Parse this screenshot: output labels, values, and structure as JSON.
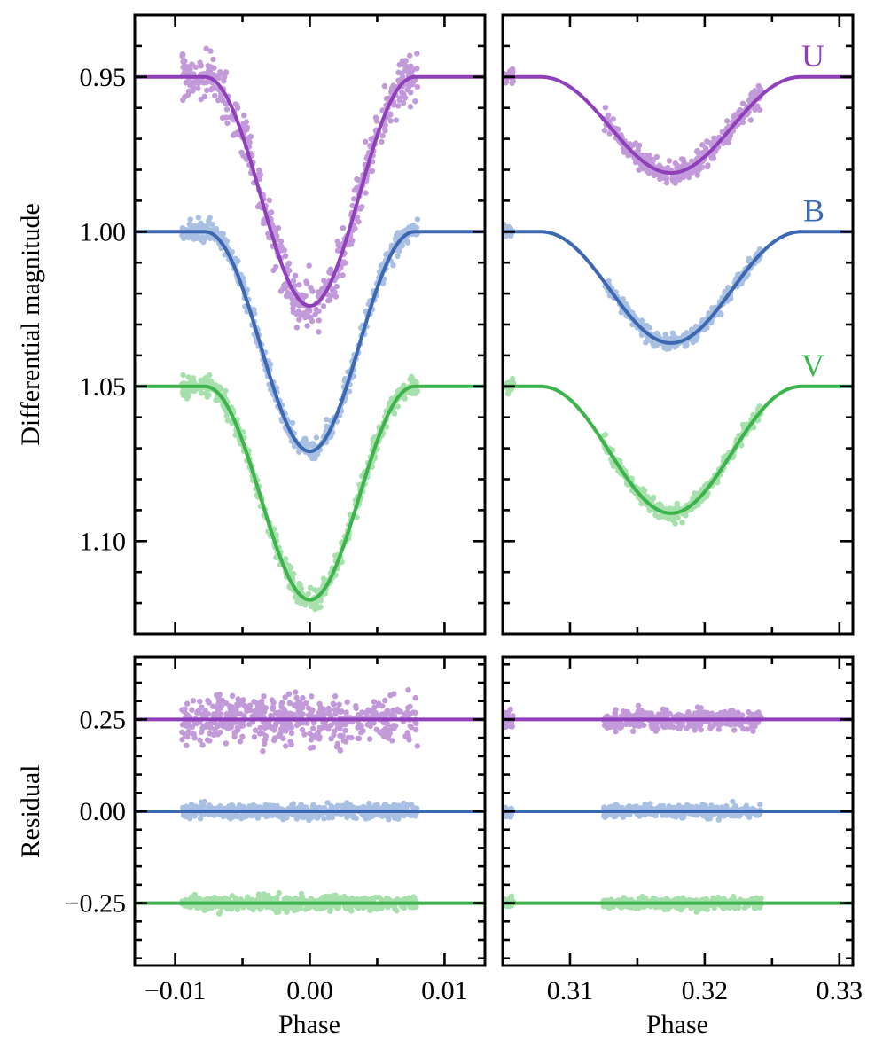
{
  "chart_data": [
    {
      "id": "primary",
      "type": "line",
      "title": "",
      "xlabel": "",
      "ylabel": "Differential magnitude",
      "xlim": [
        -0.013,
        0.013
      ],
      "ylim": [
        1.13,
        0.93
      ],
      "y_inverted": true,
      "xticks": [
        -0.01,
        0.0,
        0.01
      ],
      "xticks_minor": [
        -0.005,
        0.005
      ],
      "yticks": [
        0.95,
        1.0,
        1.05,
        1.1
      ],
      "ytick_labels": [
        "0.95",
        "1.00",
        "1.05",
        "1.10"
      ],
      "eclipse": {
        "center": 0.0,
        "half_width": 0.0078,
        "obs_range": [
          -0.0095,
          0.008
        ]
      },
      "series": [
        {
          "name": "U",
          "baseline": 0.95,
          "depth": 0.074,
          "scatter": 0.006,
          "line_color": "#8f3fba",
          "point_color": "#c29ad9"
        },
        {
          "name": "B",
          "baseline": 1.0,
          "depth": 0.071,
          "scatter": 0.0025,
          "line_color": "#3b68b1",
          "point_color": "#aac0e3"
        },
        {
          "name": "V",
          "baseline": 1.05,
          "depth": 0.069,
          "scatter": 0.0025,
          "line_color": "#3cb44b",
          "point_color": "#a7e0ac"
        }
      ]
    },
    {
      "id": "secondary",
      "type": "line",
      "title": "",
      "xlabel": "",
      "ylabel": "",
      "xlim": [
        0.305,
        0.331
      ],
      "ylim": [
        1.13,
        0.93
      ],
      "y_inverted": true,
      "xticks": [
        0.31,
        0.32,
        0.33
      ],
      "xticks_minor": [
        0.315,
        0.325
      ],
      "yticks": [
        0.95,
        1.0,
        1.05,
        1.1
      ],
      "eclipse": {
        "center": 0.3175,
        "half_width": 0.0097,
        "obs_ranges": [
          [
            0.305,
            0.3058
          ],
          [
            0.3125,
            0.3242
          ]
        ]
      },
      "band_labels": [
        "U",
        "B",
        "V"
      ],
      "series": [
        {
          "name": "U",
          "baseline": 0.95,
          "depth": 0.031,
          "scatter": 0.0025,
          "line_color": "#8f3fba",
          "point_color": "#c29ad9"
        },
        {
          "name": "B",
          "baseline": 1.0,
          "depth": 0.036,
          "scatter": 0.0017,
          "line_color": "#3b68b1",
          "point_color": "#aac0e3"
        },
        {
          "name": "V",
          "baseline": 1.05,
          "depth": 0.041,
          "scatter": 0.0017,
          "line_color": "#3cb44b",
          "point_color": "#a7e0ac"
        }
      ]
    },
    {
      "id": "residual-primary",
      "type": "scatter",
      "xlabel": "Phase",
      "ylabel": "Residual",
      "xlim": [
        -0.013,
        0.013
      ],
      "ylim": [
        -0.42,
        0.42
      ],
      "xticks": [
        -0.01,
        0.0,
        0.01
      ],
      "xtick_labels": [
        "−0.01",
        "0.00",
        "0.01"
      ],
      "xticks_minor": [
        -0.005,
        0.005
      ],
      "yticks": [
        -0.25,
        0.0,
        0.25
      ],
      "ytick_labels": [
        "−0.25",
        "0.00",
        "0.25"
      ],
      "obs_range": [
        -0.0095,
        0.008
      ],
      "series": [
        {
          "name": "U",
          "offset": 0.25,
          "scatter": 0.045,
          "line_color": "#8f3fba",
          "point_color": "#c29ad9"
        },
        {
          "name": "B",
          "offset": 0.0,
          "scatter": 0.013,
          "line_color": "#3b68b1",
          "point_color": "#aac0e3"
        },
        {
          "name": "V",
          "offset": -0.25,
          "scatter": 0.013,
          "line_color": "#3cb44b",
          "point_color": "#a7e0ac"
        }
      ]
    },
    {
      "id": "residual-secondary",
      "type": "scatter",
      "xlabel": "Phase",
      "ylabel": "",
      "xlim": [
        0.305,
        0.331
      ],
      "ylim": [
        -0.42,
        0.42
      ],
      "xticks": [
        0.31,
        0.32,
        0.33
      ],
      "xtick_labels": [
        "0.31",
        "0.32",
        "0.33"
      ],
      "xticks_minor": [
        0.315,
        0.325
      ],
      "yticks": [
        -0.25,
        0.0,
        0.25
      ],
      "obs_ranges": [
        [
          0.305,
          0.3058
        ],
        [
          0.3125,
          0.3242
        ]
      ],
      "series": [
        {
          "name": "U",
          "offset": 0.25,
          "scatter": 0.02,
          "line_color": "#8f3fba",
          "point_color": "#c29ad9"
        },
        {
          "name": "B",
          "offset": 0.0,
          "scatter": 0.011,
          "line_color": "#3b68b1",
          "point_color": "#aac0e3"
        },
        {
          "name": "V",
          "offset": -0.25,
          "scatter": 0.011,
          "line_color": "#3cb44b",
          "point_color": "#a7e0ac"
        }
      ]
    }
  ]
}
